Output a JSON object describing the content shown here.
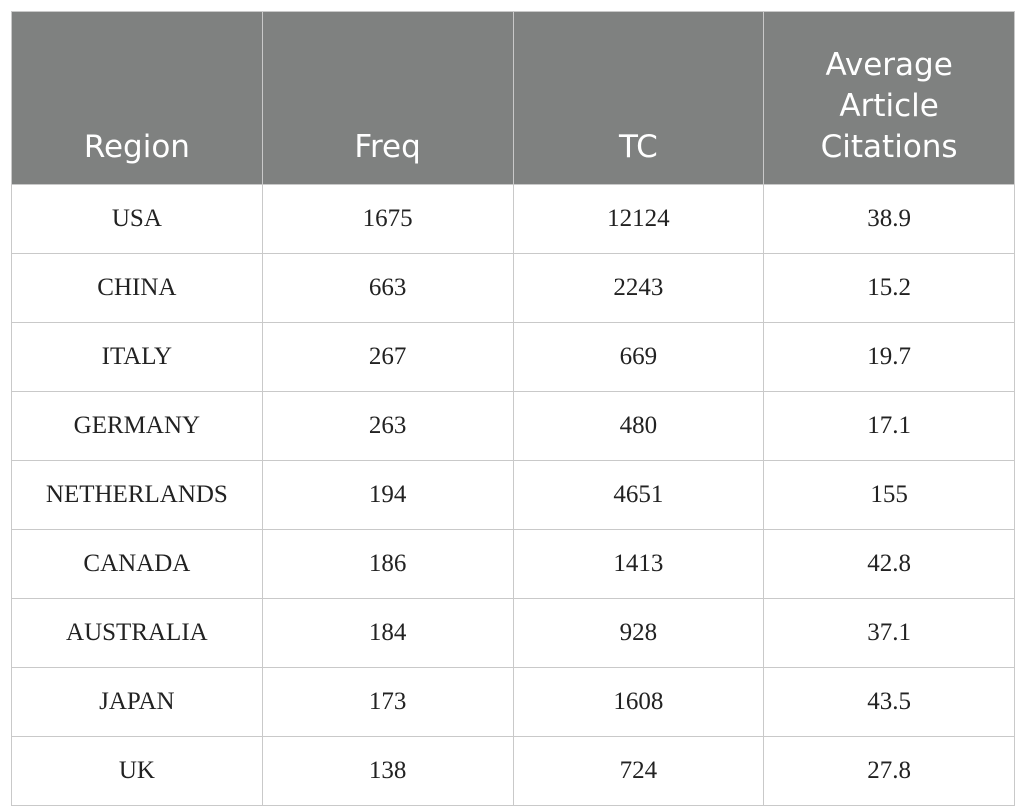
{
  "table": {
    "header": [
      "Region",
      "Freq",
      "TC",
      "Average Article Citations"
    ],
    "rows": [
      [
        "USA",
        1675,
        12124,
        38.9
      ],
      [
        "CHINA",
        663,
        2243,
        15.2
      ],
      [
        "ITALY",
        267,
        669,
        19.7
      ],
      [
        "GERMANY",
        263,
        480,
        17.1
      ],
      [
        "NETHERLANDS",
        194,
        4651,
        155
      ],
      [
        "CANADA",
        186,
        1413,
        42.8
      ],
      [
        "AUSTRALIA",
        184,
        928,
        37.1
      ],
      [
        "JAPAN",
        173,
        1608,
        43.5
      ],
      [
        "UK",
        138,
        724,
        27.8
      ]
    ]
  }
}
